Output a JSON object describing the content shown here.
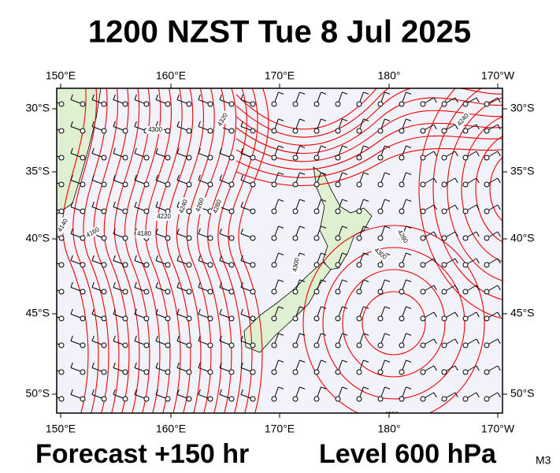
{
  "title": "1200 NZST Tue 8 Jul 2025",
  "top_axis": [
    "150°E",
    "160°E",
    "170°E",
    "180°",
    "170°W"
  ],
  "bottom_axis": [
    "150°E",
    "160°E",
    "170°E",
    "180°",
    "170°W"
  ],
  "left_axis": [
    "30°S",
    "35°S",
    "40°S",
    "45°S",
    "50°S"
  ],
  "right_axis": [
    "30°S",
    "35°S",
    "40°S",
    "45°S",
    "50°S"
  ],
  "contour_labels": [
    "4320",
    "4300",
    "4280",
    "4260",
    "4240",
    "4220",
    "4180",
    "4160",
    "4140",
    "4300",
    "4300",
    "4280",
    "4240",
    "4300"
  ],
  "forecast": "Forecast +150 hr",
  "level": "Level 600 hPa",
  "model": "M3"
}
